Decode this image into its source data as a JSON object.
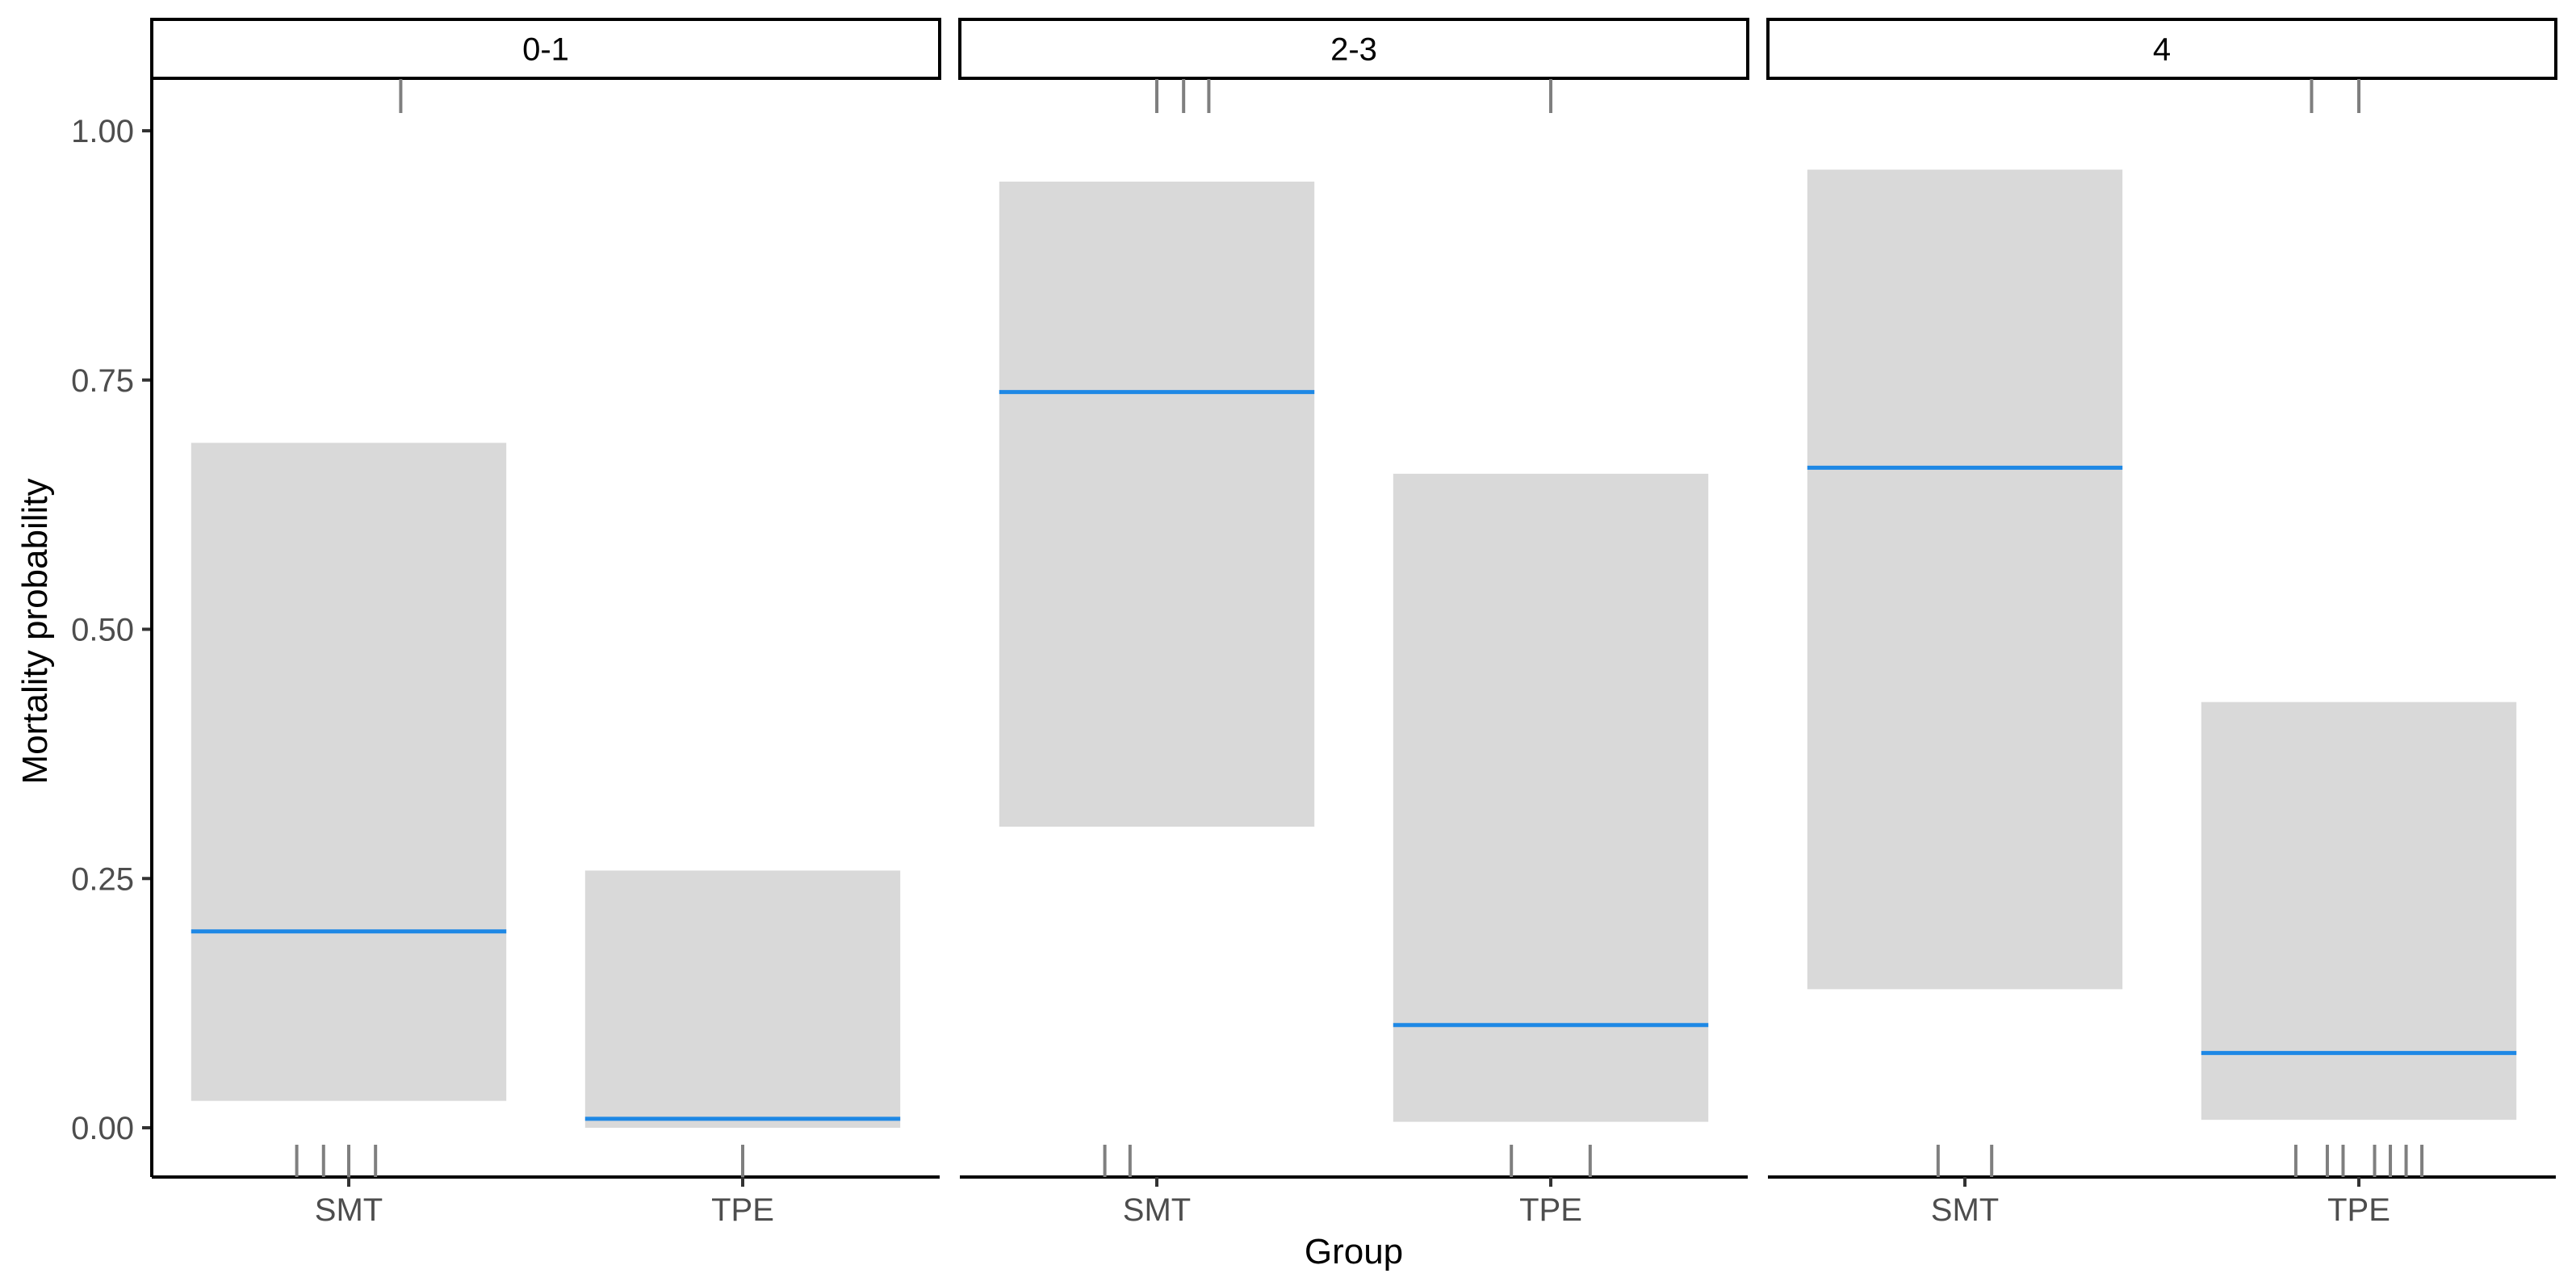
{
  "chart_data": {
    "type": "bar",
    "xlabel": "Group",
    "ylabel": "Mortality probability",
    "ylim": [
      0,
      1.05
    ],
    "y_ticks": [
      0.0,
      0.25,
      0.5,
      0.75,
      1.0
    ],
    "y_tick_labels": [
      "0.00",
      "0.25",
      "0.50",
      "0.75",
      "1.00"
    ],
    "categories": [
      "SMT",
      "TPE"
    ],
    "colors": {
      "fit": "#1e88e5",
      "band": "#d9d9d9",
      "rug": "#7f7f7f"
    },
    "grid": false,
    "panels": [
      {
        "label": "0-1",
        "groups": [
          {
            "name": "SMT",
            "estimate": 0.197,
            "lower": 0.027,
            "upper": 0.687,
            "rug_bottom_x": [
              -0.33,
              -0.16,
              0.0,
              0.17
            ],
            "rug_top_x": [
              0.33
            ]
          },
          {
            "name": "TPE",
            "estimate": 0.009,
            "lower": 0.0,
            "upper": 0.258,
            "rug_bottom_x": [
              0.0
            ],
            "rug_top_x": []
          }
        ]
      },
      {
        "label": "2-3",
        "groups": [
          {
            "name": "SMT",
            "estimate": 0.738,
            "lower": 0.302,
            "upper": 0.949,
            "rug_bottom_x": [
              -0.33,
              -0.17
            ],
            "rug_top_x": [
              0.0,
              0.17,
              0.33
            ]
          },
          {
            "name": "TPE",
            "estimate": 0.103,
            "lower": 0.006,
            "upper": 0.656,
            "rug_bottom_x": [
              -0.25,
              0.25
            ],
            "rug_top_x": [
              0.0
            ]
          }
        ]
      },
      {
        "label": "4",
        "groups": [
          {
            "name": "SMT",
            "estimate": 0.662,
            "lower": 0.139,
            "upper": 0.961,
            "rug_bottom_x": [
              -0.17,
              0.17
            ],
            "rug_top_x": []
          },
          {
            "name": "TPE",
            "estimate": 0.075,
            "lower": 0.008,
            "upper": 0.427,
            "rug_bottom_x": [
              -0.4,
              -0.2,
              -0.1,
              0.1,
              0.2,
              0.3,
              0.4
            ],
            "rug_top_x": [
              -0.3,
              0.0
            ]
          }
        ]
      }
    ]
  }
}
